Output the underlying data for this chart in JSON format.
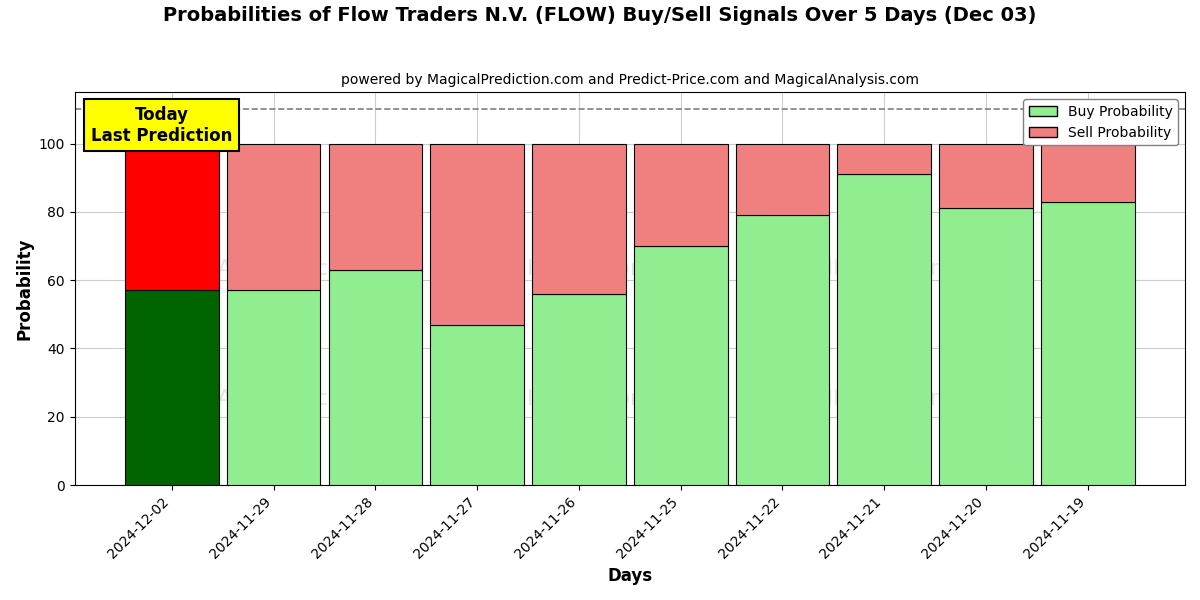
{
  "title": "Probabilities of Flow Traders N.V. (FLOW) Buy/Sell Signals Over 5 Days (Dec 03)",
  "subtitle": "powered by MagicalPrediction.com and Predict-Price.com and MagicalAnalysis.com",
  "xlabel": "Days",
  "ylabel": "Probability",
  "dates": [
    "2024-12-02",
    "2024-11-29",
    "2024-11-28",
    "2024-11-27",
    "2024-11-26",
    "2024-11-25",
    "2024-11-22",
    "2024-11-21",
    "2024-11-20",
    "2024-11-19"
  ],
  "buy_values": [
    57,
    57,
    63,
    47,
    56,
    70,
    79,
    91,
    81,
    83
  ],
  "sell_values": [
    43,
    43,
    37,
    53,
    44,
    30,
    21,
    9,
    19,
    17
  ],
  "today_buy_color": "#006400",
  "today_sell_color": "#FF0000",
  "buy_color": "#90EE90",
  "sell_color": "#F08080",
  "today_annotation_bg": "#FFFF00",
  "today_annotation_text": "Today\nLast Prediction",
  "dashed_line_y": 110,
  "ylim": [
    0,
    115
  ],
  "watermark_texts": [
    "calAnalysis.com",
    "MagicalPrediction.com",
    "calAnalysis.com",
    "MagicalPrediction.com"
  ],
  "legend_buy_label": "Buy Probability",
  "legend_sell_label": "Sell Probability",
  "background_color": "#ffffff",
  "grid_color": "#cccccc",
  "bar_width": 0.92
}
